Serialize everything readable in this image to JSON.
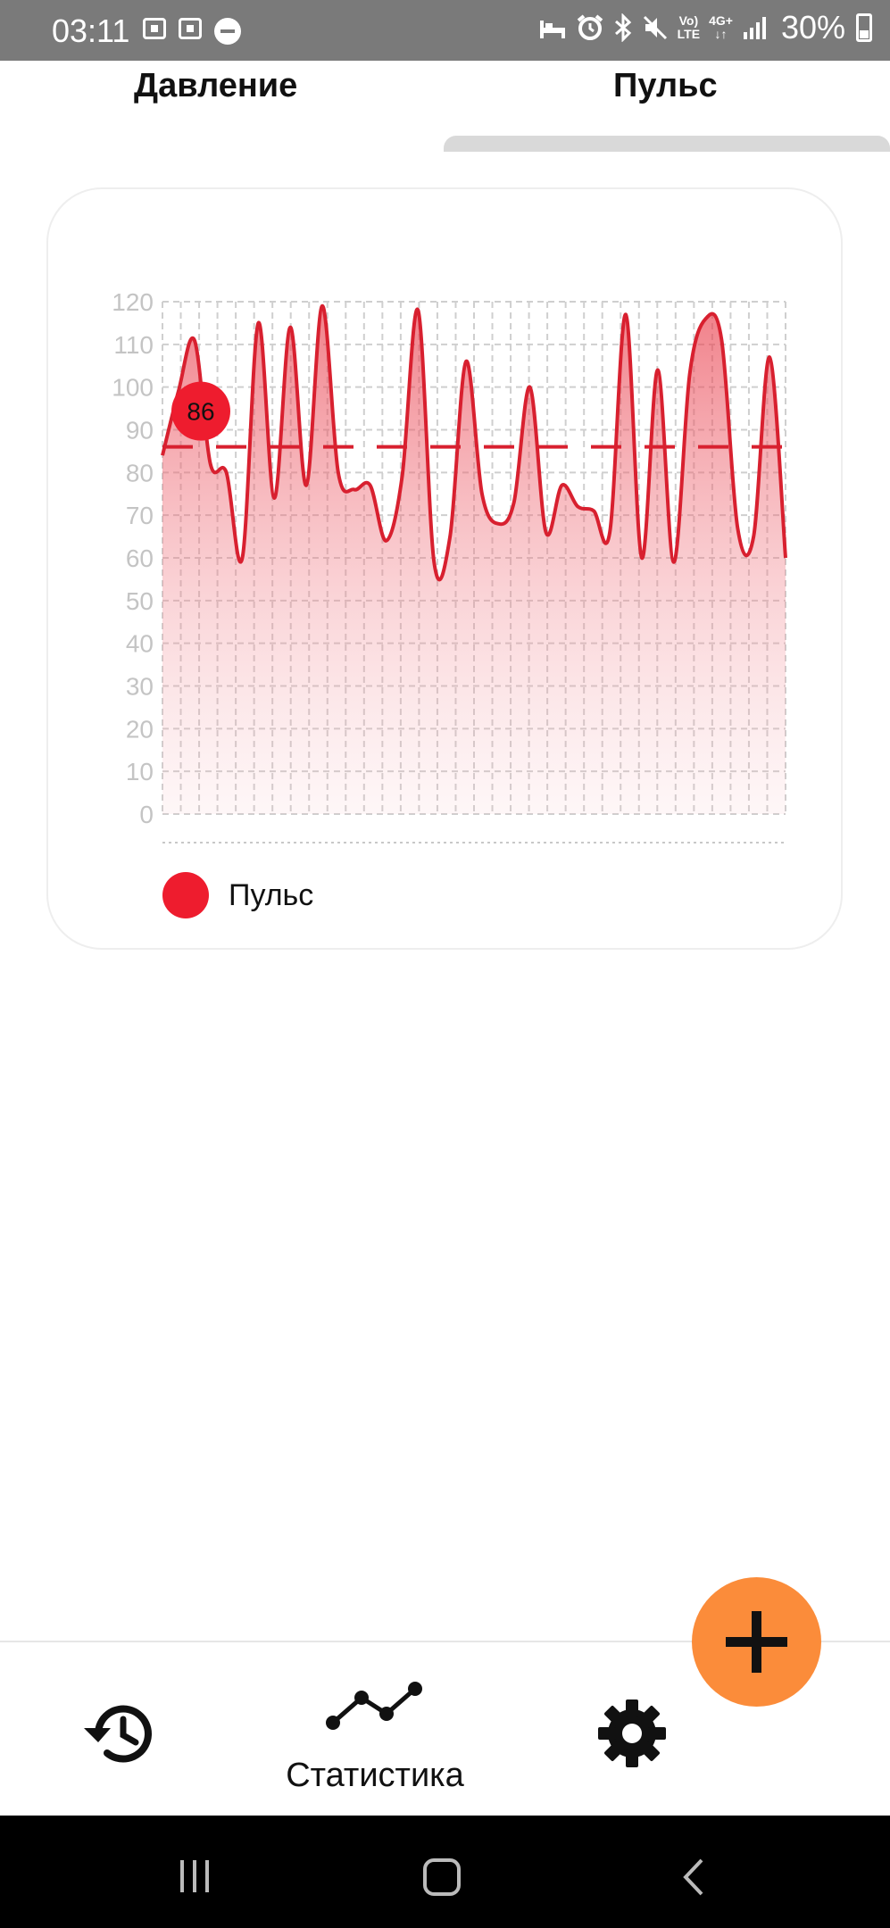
{
  "status_bar": {
    "time": "03:11",
    "network_label_top": "Vo)",
    "network_label_bottom": "LTE",
    "data_label_top": "4G+",
    "data_label_bottom": "↓↑",
    "battery": "30%",
    "icons": [
      "screenshot-icon",
      "screen-record-icon",
      "do-not-disturb-icon",
      "sleep-icon",
      "alarm-icon",
      "bluetooth-icon",
      "mute-icon",
      "volte-icon",
      "4g-plus-icon",
      "signal-icon",
      "battery-icon"
    ]
  },
  "tabs": [
    {
      "label": "Давление",
      "active": false
    },
    {
      "label": "Пульс",
      "active": true
    }
  ],
  "chart_data": {
    "type": "area",
    "title": "",
    "xlabel": "",
    "ylabel": "",
    "ylim": [
      0,
      120
    ],
    "yticks": [
      0,
      10,
      20,
      30,
      40,
      50,
      60,
      70,
      80,
      90,
      100,
      110,
      120
    ],
    "grid": true,
    "color": "#d8202f",
    "series": [
      {
        "name": "Пульс",
        "values": [
          84,
          99,
          111,
          82,
          80,
          60,
          115,
          74,
          114,
          77,
          119,
          80,
          76,
          77,
          64,
          79,
          118,
          59,
          65,
          106,
          75,
          68,
          73,
          100,
          66,
          77,
          72,
          71,
          66,
          117,
          60,
          104,
          59,
          103,
          116,
          111,
          67,
          65,
          107,
          60
        ]
      }
    ],
    "reference_line": {
      "value": 86,
      "label": "86",
      "style": "dashed"
    },
    "legend": {
      "placement": "bottom-left",
      "entries": [
        "Пульс"
      ]
    }
  },
  "bottom_nav": {
    "items": [
      {
        "icon": "history-icon",
        "label": ""
      },
      {
        "icon": "chart-line-icon",
        "label": "Статистика",
        "active": true
      },
      {
        "icon": "settings-icon",
        "label": ""
      }
    ]
  },
  "fab": {
    "icon": "plus-icon"
  }
}
